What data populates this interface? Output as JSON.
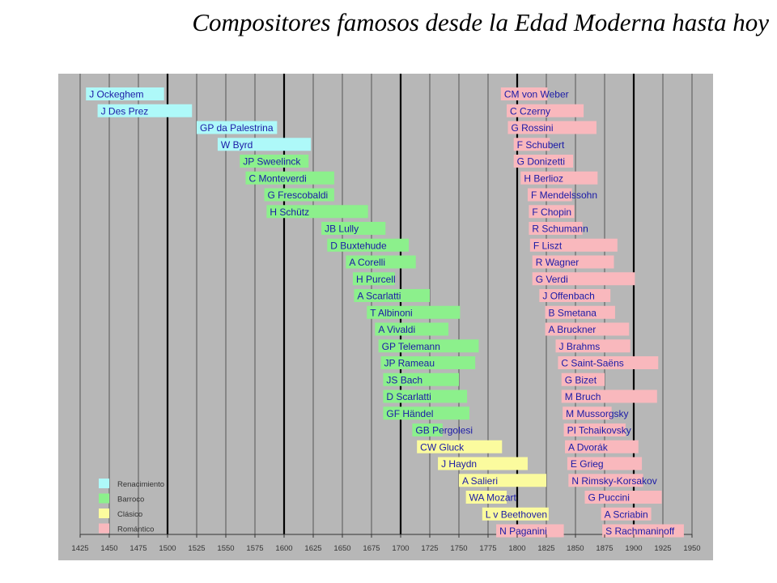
{
  "title": "Compositores famosos desde la Edad Moderna hasta hoy",
  "chart_data": {
    "type": "bar",
    "orientation": "horizontal-timeline",
    "xlim": [
      1425,
      1950
    ],
    "xticks": [
      1425,
      1450,
      1475,
      1500,
      1525,
      1550,
      1575,
      1600,
      1625,
      1650,
      1675,
      1700,
      1725,
      1750,
      1775,
      1800,
      1825,
      1850,
      1875,
      1900,
      1925,
      1950
    ],
    "major_gridlines": [
      1500,
      1600,
      1700,
      1800,
      1900
    ],
    "grid": true,
    "legend_position": "bottom-left",
    "colors": {
      "background": "#b7b7b7",
      "Renacimiento": "#aef9f9",
      "Barroco": "#8cf08c",
      "Clásico": "#fbfb9e",
      "Romántico": "#f9b8bd",
      "label": "#1a1aa6",
      "grid_minor": "#555555",
      "grid_major": "#000000"
    },
    "legend": [
      {
        "name": "Renacimiento",
        "color": "#aef9f9"
      },
      {
        "name": "Barroco",
        "color": "#8cf08c"
      },
      {
        "name": "Clásico",
        "color": "#fbfb9e"
      },
      {
        "name": "Romántico",
        "color": "#f9b8bd"
      }
    ],
    "bars": [
      {
        "label": "J Ockeghem",
        "start": 1430,
        "end": 1497,
        "period": "Renacimiento",
        "column": 0
      },
      {
        "label": "J Des Prez",
        "start": 1440,
        "end": 1521,
        "period": "Renacimiento",
        "column": 0
      },
      {
        "label": "GP da Palestrina",
        "start": 1525,
        "end": 1594,
        "period": "Renacimiento",
        "column": 0
      },
      {
        "label": "W Byrd",
        "start": 1543,
        "end": 1623,
        "period": "Renacimiento",
        "column": 0
      },
      {
        "label": "JP Sweelinck",
        "start": 1562,
        "end": 1621,
        "period": "Barroco",
        "column": 0
      },
      {
        "label": "C Monteverdi",
        "start": 1567,
        "end": 1643,
        "period": "Barroco",
        "column": 0
      },
      {
        "label": "G Frescobaldi",
        "start": 1583,
        "end": 1643,
        "period": "Barroco",
        "column": 0
      },
      {
        "label": "H Schütz",
        "start": 1585,
        "end": 1672,
        "period": "Barroco",
        "column": 0
      },
      {
        "label": "JB Lully",
        "start": 1632,
        "end": 1687,
        "period": "Barroco",
        "column": 0
      },
      {
        "label": "D Buxtehude",
        "start": 1637,
        "end": 1707,
        "period": "Barroco",
        "column": 0
      },
      {
        "label": "A Corelli",
        "start": 1653,
        "end": 1713,
        "period": "Barroco",
        "column": 0
      },
      {
        "label": "H Purcell",
        "start": 1659,
        "end": 1695,
        "period": "Barroco",
        "column": 0
      },
      {
        "label": "A Scarlatti",
        "start": 1660,
        "end": 1725,
        "period": "Barroco",
        "column": 0
      },
      {
        "label": "T Albinoni",
        "start": 1671,
        "end": 1751,
        "period": "Barroco",
        "column": 0
      },
      {
        "label": "A Vivaldi",
        "start": 1678,
        "end": 1741,
        "period": "Barroco",
        "column": 0
      },
      {
        "label": "GP Telemann",
        "start": 1681,
        "end": 1767,
        "period": "Barroco",
        "column": 0
      },
      {
        "label": "JP Rameau",
        "start": 1683,
        "end": 1764,
        "period": "Barroco",
        "column": 0
      },
      {
        "label": "JS Bach",
        "start": 1685,
        "end": 1750,
        "period": "Barroco",
        "column": 0
      },
      {
        "label": "D Scarlatti",
        "start": 1685,
        "end": 1757,
        "period": "Barroco",
        "column": 0
      },
      {
        "label": "GF Händel",
        "start": 1685,
        "end": 1759,
        "period": "Barroco",
        "column": 0
      },
      {
        "label": "GB Pergolesi",
        "start": 1710,
        "end": 1736,
        "period": "Barroco",
        "column": 0
      },
      {
        "label": "CW Gluck",
        "start": 1714,
        "end": 1787,
        "period": "Clásico",
        "column": 0
      },
      {
        "label": "J Haydn",
        "start": 1732,
        "end": 1809,
        "period": "Clásico",
        "column": 0
      },
      {
        "label": "A Salieri",
        "start": 1750,
        "end": 1825,
        "period": "Clásico",
        "column": 0
      },
      {
        "label": "WA Mozart",
        "start": 1756,
        "end": 1791,
        "period": "Clásico",
        "column": 0
      },
      {
        "label": "L v Beethoven",
        "start": 1770,
        "end": 1827,
        "period": "Clásico",
        "column": 0
      },
      {
        "label": "N Paganini",
        "start": 1782,
        "end": 1840,
        "period": "Romántico",
        "column": 0
      },
      {
        "label": "CM von Weber",
        "start": 1786,
        "end": 1826,
        "period": "Romántico",
        "column": 1
      },
      {
        "label": "C Czerny",
        "start": 1791,
        "end": 1857,
        "period": "Romántico",
        "column": 1
      },
      {
        "label": "G Rossini",
        "start": 1792,
        "end": 1868,
        "period": "Romántico",
        "column": 1
      },
      {
        "label": "F Schubert",
        "start": 1797,
        "end": 1828,
        "period": "Romántico",
        "column": 1
      },
      {
        "label": "G Donizetti",
        "start": 1797,
        "end": 1848,
        "period": "Romántico",
        "column": 1
      },
      {
        "label": "H Berlioz",
        "start": 1803,
        "end": 1869,
        "period": "Romántico",
        "column": 1
      },
      {
        "label": "F Mendelssohn",
        "start": 1809,
        "end": 1847,
        "period": "Romántico",
        "column": 1
      },
      {
        "label": "F Chopin",
        "start": 1810,
        "end": 1849,
        "period": "Romántico",
        "column": 1
      },
      {
        "label": "R Schumann",
        "start": 1810,
        "end": 1856,
        "period": "Romántico",
        "column": 1
      },
      {
        "label": "F Liszt",
        "start": 1811,
        "end": 1886,
        "period": "Romántico",
        "column": 1
      },
      {
        "label": "R Wagner",
        "start": 1813,
        "end": 1883,
        "period": "Romántico",
        "column": 1
      },
      {
        "label": "G Verdi",
        "start": 1813,
        "end": 1901,
        "period": "Romántico",
        "column": 1
      },
      {
        "label": "J Offenbach",
        "start": 1819,
        "end": 1880,
        "period": "Romántico",
        "column": 1
      },
      {
        "label": "B Smetana",
        "start": 1824,
        "end": 1884,
        "period": "Romántico",
        "column": 1
      },
      {
        "label": "A Bruckner",
        "start": 1824,
        "end": 1896,
        "period": "Romántico",
        "column": 1
      },
      {
        "label": "J Brahms",
        "start": 1833,
        "end": 1897,
        "period": "Romántico",
        "column": 1
      },
      {
        "label": "C Saint-Saëns",
        "start": 1835,
        "end": 1921,
        "period": "Romántico",
        "column": 1
      },
      {
        "label": "G Bizet",
        "start": 1838,
        "end": 1875,
        "period": "Romántico",
        "column": 1
      },
      {
        "label": "M Bruch",
        "start": 1838,
        "end": 1920,
        "period": "Romántico",
        "column": 1
      },
      {
        "label": "M Mussorgsky",
        "start": 1839,
        "end": 1881,
        "period": "Romántico",
        "column": 1
      },
      {
        "label": "PI Tchaikovsky",
        "start": 1840,
        "end": 1893,
        "period": "Romántico",
        "column": 1
      },
      {
        "label": "A Dvorák",
        "start": 1841,
        "end": 1904,
        "period": "Romántico",
        "column": 1
      },
      {
        "label": "E Grieg",
        "start": 1843,
        "end": 1907,
        "period": "Romántico",
        "column": 1
      },
      {
        "label": "N Rimsky-Korsakov",
        "start": 1844,
        "end": 1908,
        "period": "Romántico",
        "column": 1
      },
      {
        "label": "G Puccini",
        "start": 1858,
        "end": 1924,
        "period": "Romántico",
        "column": 1
      },
      {
        "label": "A Scriabin",
        "start": 1872,
        "end": 1915,
        "period": "Romántico",
        "column": 1
      },
      {
        "label": "S Rachmaninoff",
        "start": 1873,
        "end": 1943,
        "period": "Romántico",
        "column": 1
      }
    ]
  }
}
